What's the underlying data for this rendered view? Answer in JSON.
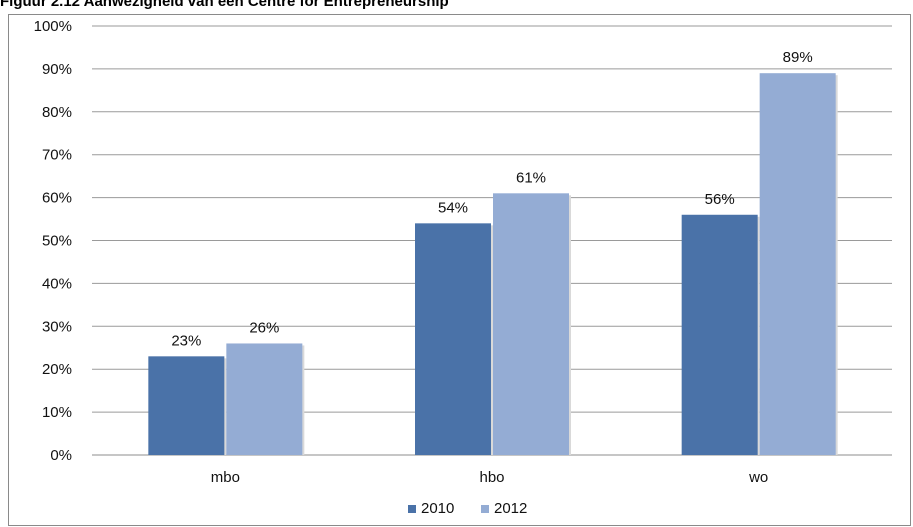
{
  "caption": "Figuur 2.12   Aanwezigheid van een Centre for Entrepreneurship",
  "chart_data": {
    "type": "bar",
    "title": "",
    "xlabel": "",
    "ylabel": "",
    "categories": [
      "mbo",
      "hbo",
      "wo"
    ],
    "series": [
      {
        "name": "2010",
        "values": [
          23,
          54,
          56
        ],
        "color": "#4A72A8"
      },
      {
        "name": "2012",
        "values": [
          26,
          61,
          89
        ],
        "color": "#94ACD4"
      }
    ],
    "ylim": [
      0,
      100
    ],
    "yticks": [
      0,
      10,
      20,
      30,
      40,
      50,
      60,
      70,
      80,
      90,
      100
    ],
    "tick_suffix": "%",
    "grid": true,
    "legend": "bottom-center"
  }
}
